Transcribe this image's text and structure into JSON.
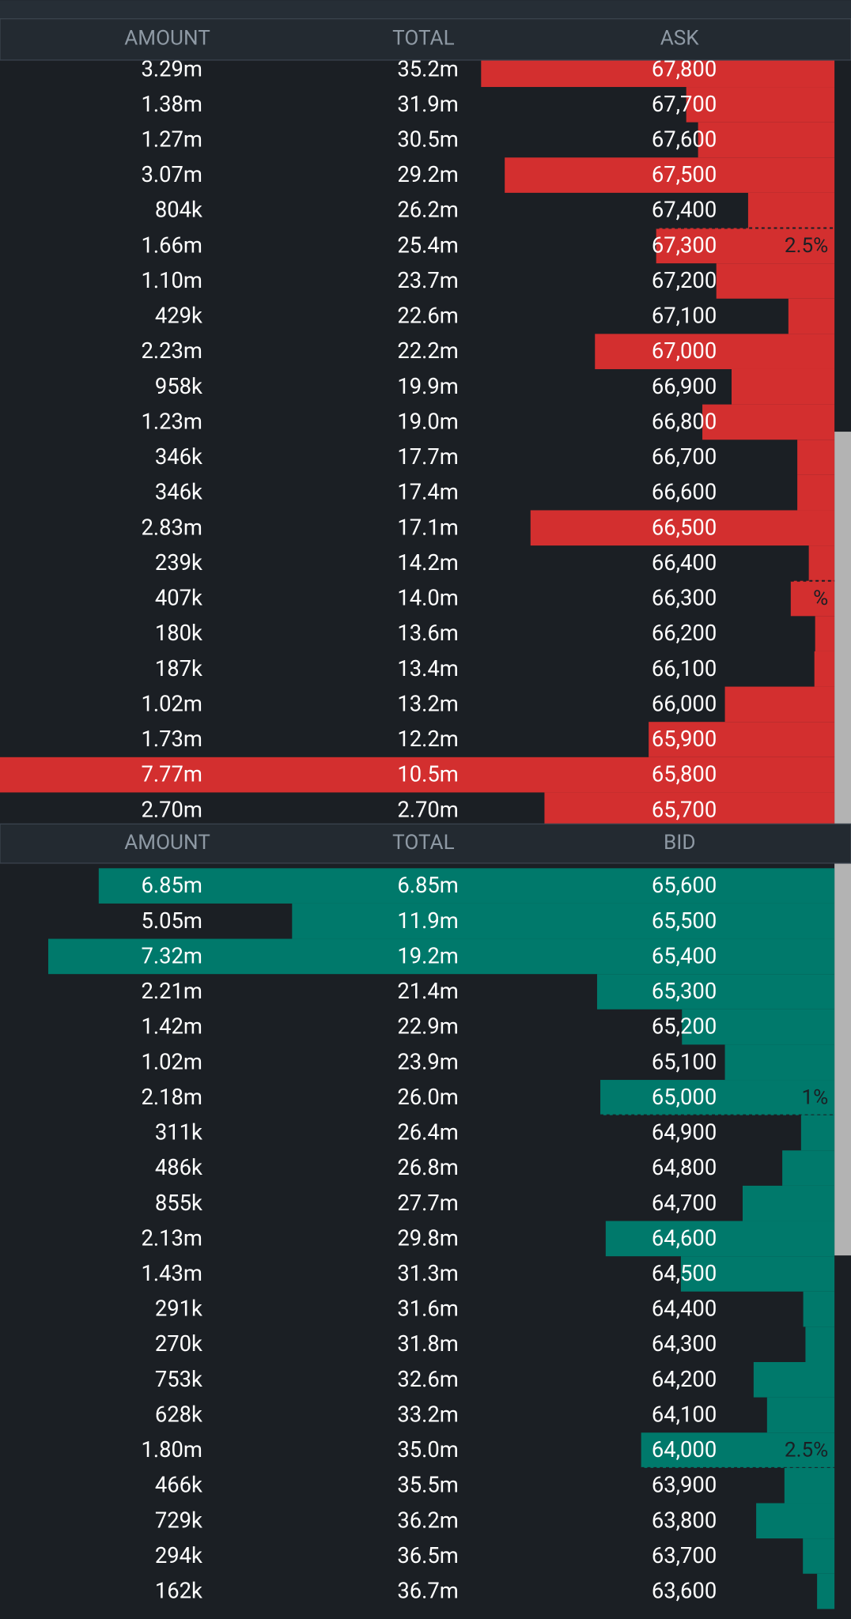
{
  "asks": {
    "header": {
      "amount": "AMOUNT",
      "total": "TOTAL",
      "price": "ASK"
    },
    "rows": [
      {
        "amount": 3.29,
        "amount_label": "3.29m",
        "total": "35.2m",
        "price": "67,800"
      },
      {
        "amount": 1.38,
        "amount_label": "1.38m",
        "total": "31.9m",
        "price": "67,700"
      },
      {
        "amount": 1.27,
        "amount_label": "1.27m",
        "total": "30.5m",
        "price": "67,600"
      },
      {
        "amount": 3.07,
        "amount_label": "3.07m",
        "total": "29.2m",
        "price": "67,500"
      },
      {
        "amount": 0.804,
        "amount_label": "804k",
        "total": "26.2m",
        "price": "67,400"
      },
      {
        "amount": 1.66,
        "amount_label": "1.66m",
        "total": "25.4m",
        "price": "67,300",
        "depth_label": "2.5%"
      },
      {
        "amount": 1.1,
        "amount_label": "1.10m",
        "total": "23.7m",
        "price": "67,200"
      },
      {
        "amount": 0.429,
        "amount_label": "429k",
        "total": "22.6m",
        "price": "67,100"
      },
      {
        "amount": 2.23,
        "amount_label": "2.23m",
        "total": "22.2m",
        "price": "67,000"
      },
      {
        "amount": 0.958,
        "amount_label": "958k",
        "total": "19.9m",
        "price": "66,900"
      },
      {
        "amount": 1.23,
        "amount_label": "1.23m",
        "total": "19.0m",
        "price": "66,800"
      },
      {
        "amount": 0.346,
        "amount_label": "346k",
        "total": "17.7m",
        "price": "66,700"
      },
      {
        "amount": 0.346,
        "amount_label": "346k",
        "total": "17.4m",
        "price": "66,600"
      },
      {
        "amount": 2.83,
        "amount_label": "2.83m",
        "total": "17.1m",
        "price": "66,500"
      },
      {
        "amount": 0.239,
        "amount_label": "239k",
        "total": "14.2m",
        "price": "66,400"
      },
      {
        "amount": 0.407,
        "amount_label": "407k",
        "total": "14.0m",
        "price": "66,300",
        "depth_label": "%"
      },
      {
        "amount": 0.18,
        "amount_label": "180k",
        "total": "13.6m",
        "price": "66,200"
      },
      {
        "amount": 0.187,
        "amount_label": "187k",
        "total": "13.4m",
        "price": "66,100"
      },
      {
        "amount": 1.02,
        "amount_label": "1.02m",
        "total": "13.2m",
        "price": "66,000"
      },
      {
        "amount": 1.73,
        "amount_label": "1.73m",
        "total": "12.2m",
        "price": "65,900"
      },
      {
        "amount": 7.77,
        "amount_label": "7.77m",
        "total": "10.5m",
        "price": "65,800"
      },
      {
        "amount": 2.7,
        "amount_label": "2.70m",
        "total": "2.70m",
        "price": "65,700"
      }
    ]
  },
  "bids": {
    "header": {
      "amount": "AMOUNT",
      "total": "TOTAL",
      "price": "BID"
    },
    "rows": [
      {
        "amount": 6.85,
        "amount_label": "6.85m",
        "total": "6.85m",
        "price": "65,600"
      },
      {
        "amount": 5.05,
        "amount_label": "5.05m",
        "total": "11.9m",
        "price": "65,500"
      },
      {
        "amount": 7.32,
        "amount_label": "7.32m",
        "total": "19.2m",
        "price": "65,400"
      },
      {
        "amount": 2.21,
        "amount_label": "2.21m",
        "total": "21.4m",
        "price": "65,300"
      },
      {
        "amount": 1.42,
        "amount_label": "1.42m",
        "total": "22.9m",
        "price": "65,200"
      },
      {
        "amount": 1.02,
        "amount_label": "1.02m",
        "total": "23.9m",
        "price": "65,100"
      },
      {
        "amount": 2.18,
        "amount_label": "2.18m",
        "total": "26.0m",
        "price": "65,000",
        "depth_label": "1%"
      },
      {
        "amount": 0.311,
        "amount_label": "311k",
        "total": "26.4m",
        "price": "64,900"
      },
      {
        "amount": 0.486,
        "amount_label": "486k",
        "total": "26.8m",
        "price": "64,800"
      },
      {
        "amount": 0.855,
        "amount_label": "855k",
        "total": "27.7m",
        "price": "64,700"
      },
      {
        "amount": 2.13,
        "amount_label": "2.13m",
        "total": "29.8m",
        "price": "64,600"
      },
      {
        "amount": 1.43,
        "amount_label": "1.43m",
        "total": "31.3m",
        "price": "64,500"
      },
      {
        "amount": 0.291,
        "amount_label": "291k",
        "total": "31.6m",
        "price": "64,400"
      },
      {
        "amount": 0.27,
        "amount_label": "270k",
        "total": "31.8m",
        "price": "64,300"
      },
      {
        "amount": 0.753,
        "amount_label": "753k",
        "total": "32.6m",
        "price": "64,200"
      },
      {
        "amount": 0.628,
        "amount_label": "628k",
        "total": "33.2m",
        "price": "64,100"
      },
      {
        "amount": 1.8,
        "amount_label": "1.80m",
        "total": "35.0m",
        "price": "64,000",
        "depth_label": "2.5%"
      },
      {
        "amount": 0.466,
        "amount_label": "466k",
        "total": "35.5m",
        "price": "63,900"
      },
      {
        "amount": 0.729,
        "amount_label": "729k",
        "total": "36.2m",
        "price": "63,800"
      },
      {
        "amount": 0.294,
        "amount_label": "294k",
        "total": "36.5m",
        "price": "63,700"
      },
      {
        "amount": 0.162,
        "amount_label": "162k",
        "total": "36.7m",
        "price": "63,600"
      }
    ]
  }
}
